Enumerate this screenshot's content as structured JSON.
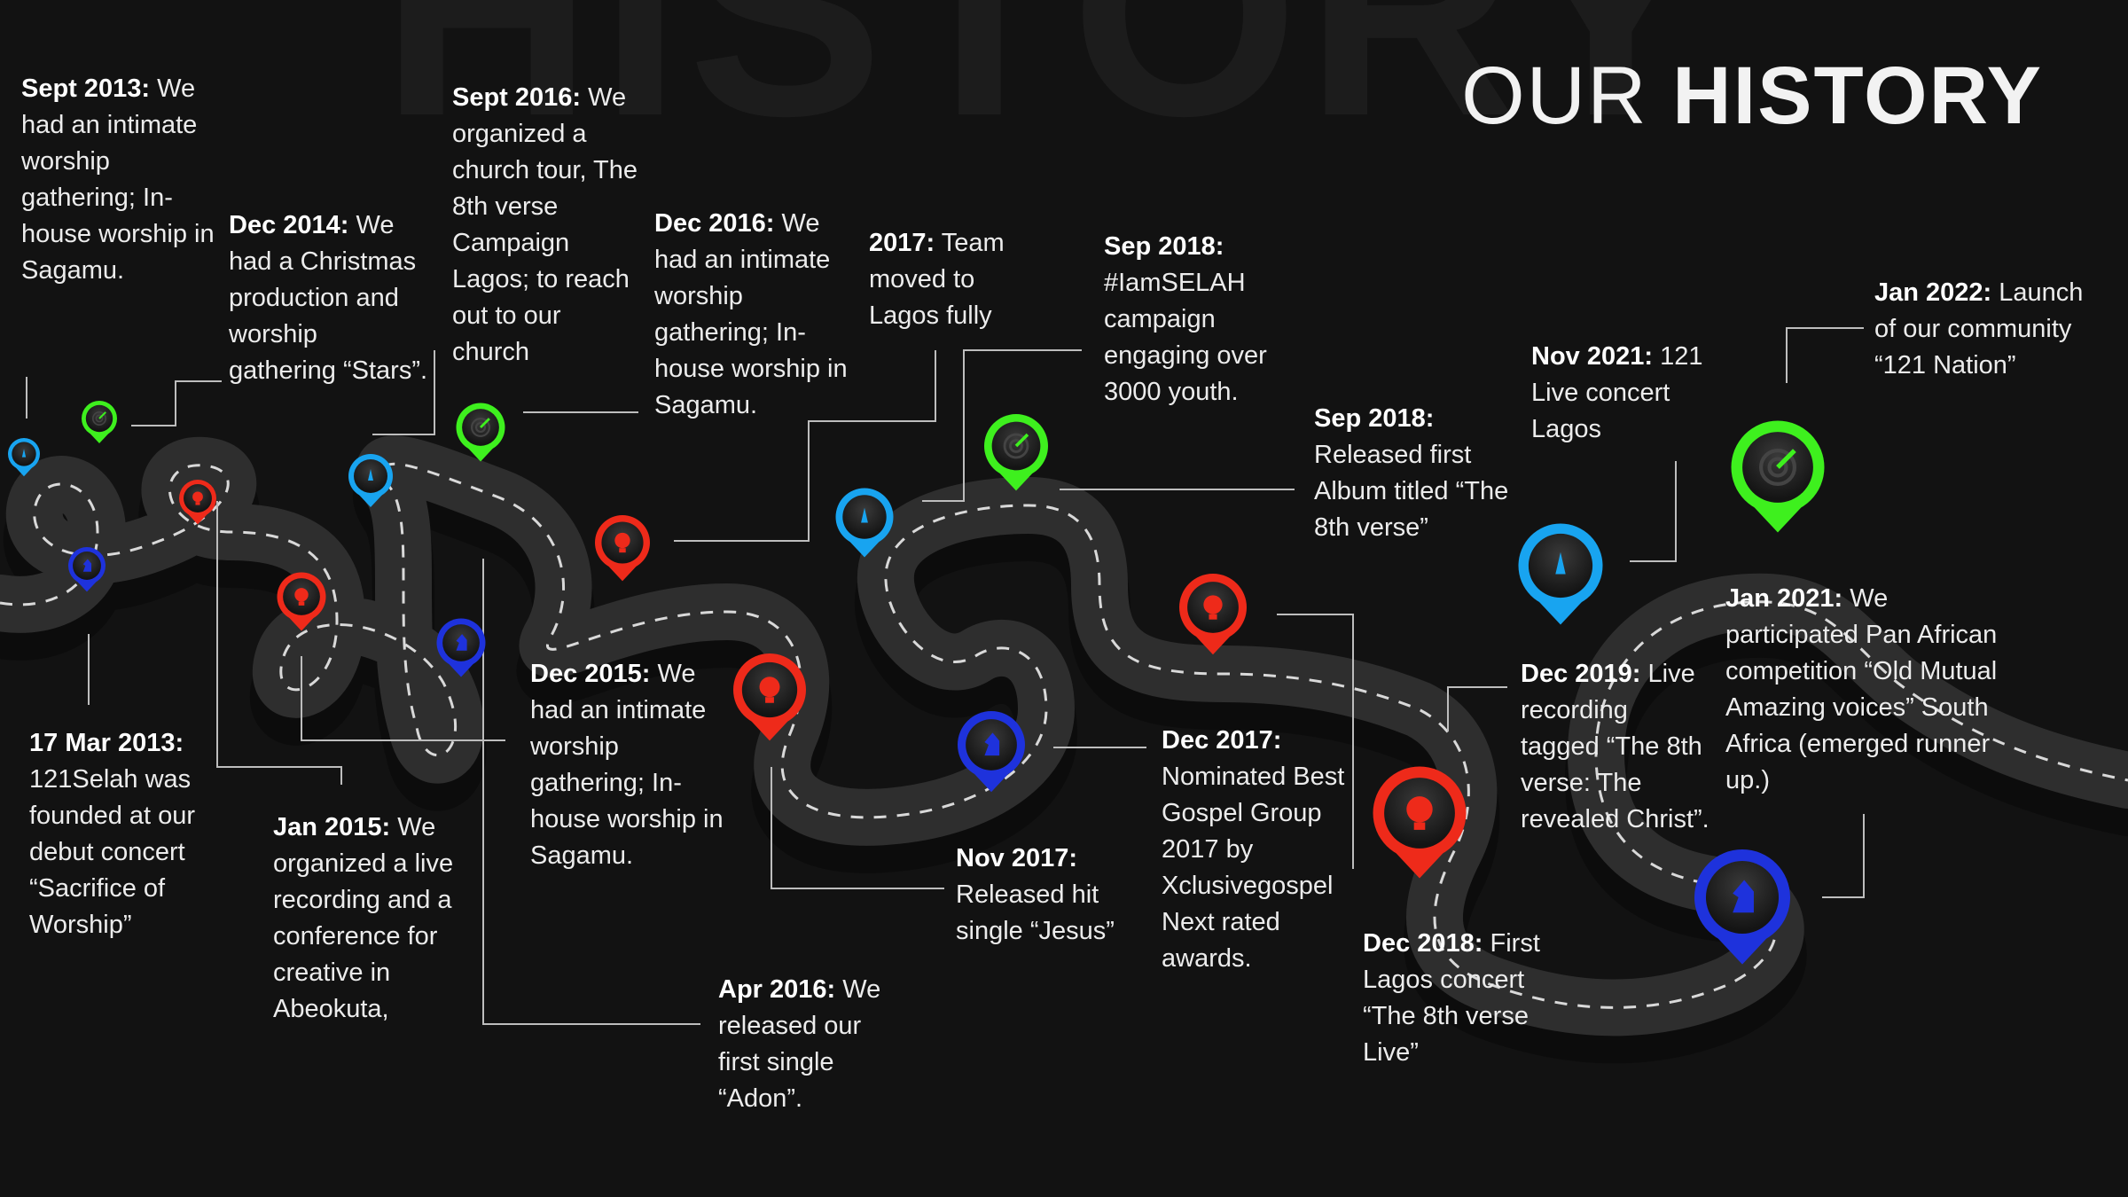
{
  "header": {
    "watermark": "HISTORY",
    "title_light": "OUR",
    "title_bold": "HISTORY"
  },
  "colors": {
    "background": "#121212",
    "road": "#2e2e2e",
    "road_dash": "#d9d9d9",
    "connector": "#bdbdbd",
    "pin_green": "#3ef01e",
    "pin_red": "#ee2a1a",
    "pin_blue": "#1e32dc",
    "pin_cyan": "#18a4f0"
  },
  "pin_icons": {
    "green": "target-icon",
    "red": "lightbulb-icon",
    "blue": "chess-knight-icon",
    "cyan": "rocket-icon"
  },
  "events": [
    {
      "date": "Sept 2013:",
      "text": "We had an intimate worship gathering; In-house worship in Sagamu."
    },
    {
      "date": "17 Mar 2013:",
      "text": "121Selah was founded at our debut concert “Sacrifice of Worship”"
    },
    {
      "date": "Dec 2014:",
      "text": "We had a Christmas production and worship gathering “Stars”."
    },
    {
      "date": "Jan 2015:",
      "text": "We organized a live recording and a conference for creative in Abeokuta,"
    },
    {
      "date": "Sept 2016:",
      "text": "We organized a church tour, The 8th verse Campaign Lagos; to reach out to our church"
    },
    {
      "date": "Dec 2015:",
      "text": "We had an intimate worship gathering; In-house worship in Sagamu."
    },
    {
      "date": "Dec 2016:",
      "text": "We had an intimate worship gathering; In-house worship in Sagamu."
    },
    {
      "date": "Apr 2016:",
      "text": "We released our first single “Adon”."
    },
    {
      "date": "2017:",
      "text": "Team moved to Lagos fully"
    },
    {
      "date": "Sep 2018:",
      "text": "#IamSELAH campaign engaging over 3000 youth."
    },
    {
      "date": "Nov 2017:",
      "text": "Released hit single “Jesus”"
    },
    {
      "date": "Sep 2018:",
      "text": "Released first Album titled “The 8th verse”"
    },
    {
      "date": "Dec 2017:",
      "text": "Nominated Best Gospel Group 2017 by Xclusivegospel Next rated awards."
    },
    {
      "date": "Dec 2018:",
      "text": "First Lagos concert “The 8th verse Live”"
    },
    {
      "date": "Nov 2021:",
      "text": "121 Live concert Lagos"
    },
    {
      "date": "Dec 2019:",
      "text": "Live recording tagged “The 8th verse: The revealed Christ”."
    },
    {
      "date": "Jan 2022:",
      "text": "Launch of our community “121 Nation”"
    },
    {
      "date": "Jan 2021:",
      "text": "We participated Pan African competition “Old Mutual Amazing voices” South Africa (emerged runner up.)"
    }
  ]
}
